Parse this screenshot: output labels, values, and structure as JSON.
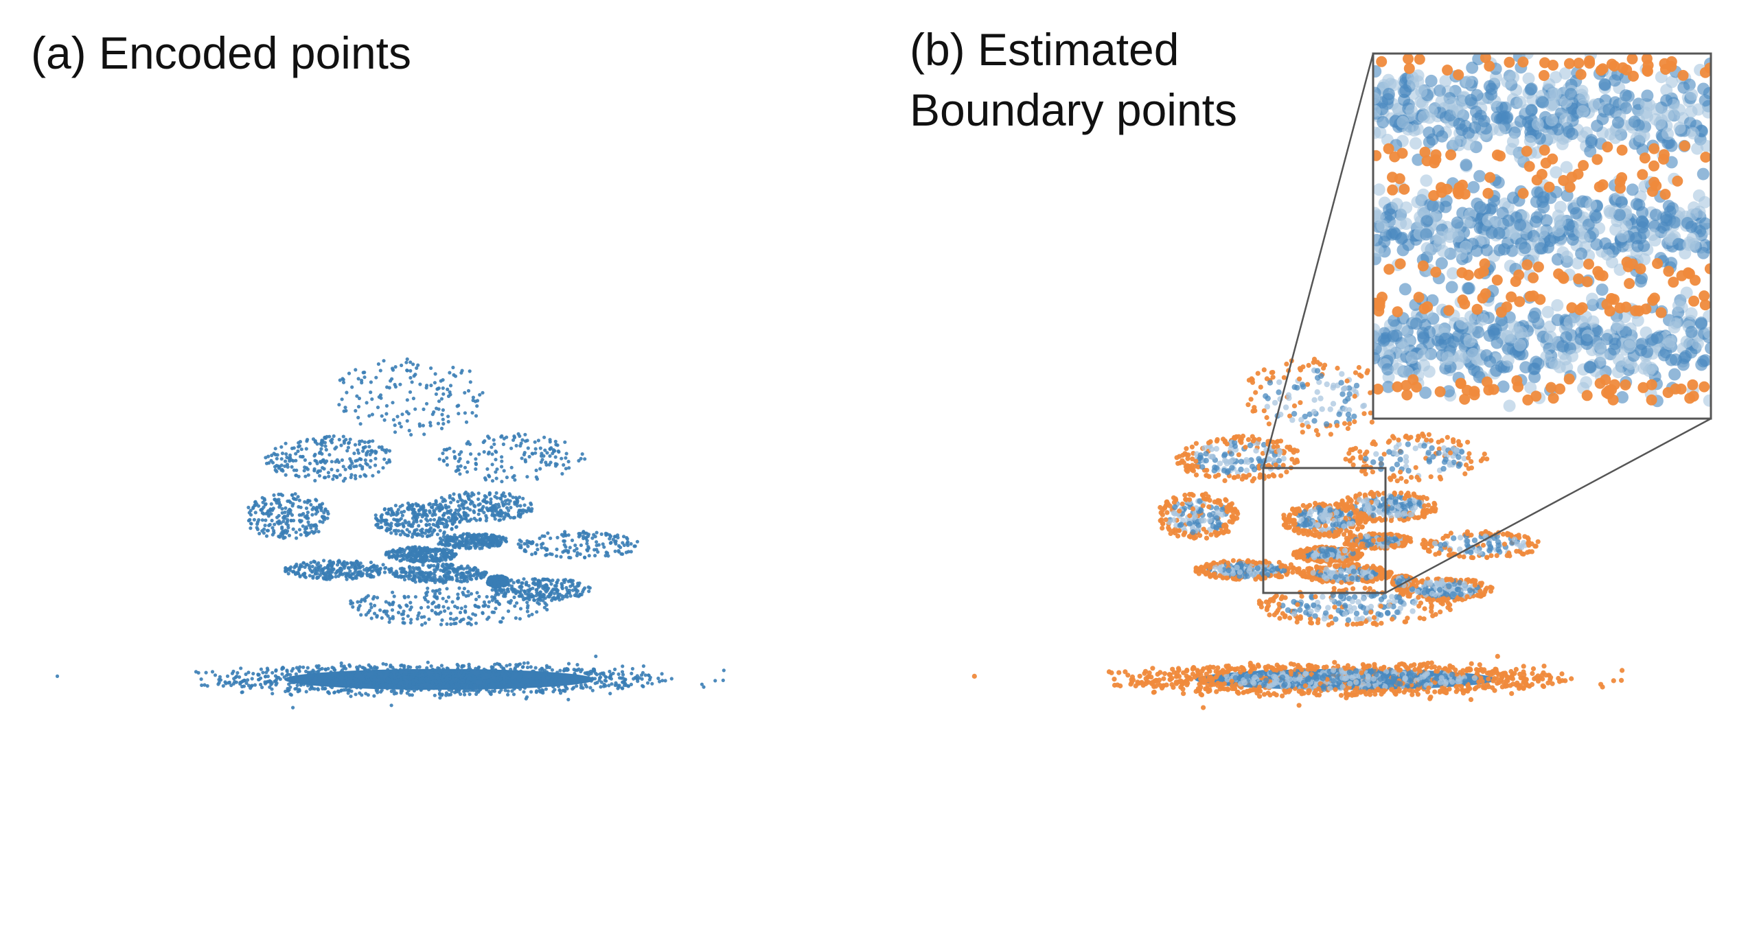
{
  "figure": {
    "panel_a_label": "(a) Encoded points",
    "panel_b_label_line1": "(b) Estimated",
    "panel_b_label_line2": "Boundary points"
  },
  "colors": {
    "encoded": "#3a7db5",
    "interior": "#4a89bf",
    "interior_light": "#a9c6df",
    "boundary": "#ef8a3c",
    "inset_frame": "#555555"
  },
  "chart_data": [
    {
      "type": "scatter",
      "title": "(a) Encoded points",
      "xlabel": "",
      "ylabel": "",
      "axes": "none",
      "grid": false,
      "legend": "none",
      "series": [
        {
          "color": "#3a7db5",
          "clusters": [
            {
              "shape": "ellipse",
              "cx": 0,
              "cy": -0.75,
              "rx": 0.52,
              "ry": 0.07,
              "density": "very high",
              "filled": true
            },
            {
              "shape": "ellipse",
              "cx": -0.08,
              "cy": 0.72,
              "rx": 0.22,
              "ry": 0.2,
              "density": "sparse"
            },
            {
              "shape": "ellipse",
              "cx": -0.3,
              "cy": 0.4,
              "rx": 0.18,
              "ry": 0.12,
              "density": "medium"
            },
            {
              "shape": "ellipse",
              "cx": 0.2,
              "cy": 0.4,
              "rx": 0.2,
              "ry": 0.13,
              "density": "sparse"
            },
            {
              "shape": "ellipse",
              "cx": -0.42,
              "cy": 0.1,
              "rx": 0.12,
              "ry": 0.12,
              "density": "medium"
            },
            {
              "shape": "ellipse",
              "cx": 0.12,
              "cy": 0.15,
              "rx": 0.14,
              "ry": 0.08,
              "density": "medium"
            },
            {
              "shape": "ellipse",
              "cx": -0.06,
              "cy": 0.08,
              "rx": 0.12,
              "ry": 0.09,
              "density": "high"
            },
            {
              "shape": "ellipse",
              "cx": 0.09,
              "cy": -0.03,
              "rx": 0.1,
              "ry": 0.04,
              "density": "high"
            },
            {
              "shape": "ellipse",
              "cx": -0.05,
              "cy": -0.1,
              "rx": 0.1,
              "ry": 0.04,
              "density": "high"
            },
            {
              "shape": "ellipse",
              "cx": 0.0,
              "cy": -0.2,
              "rx": 0.13,
              "ry": 0.05,
              "density": "high"
            },
            {
              "shape": "ellipse",
              "cx": -0.28,
              "cy": -0.18,
              "rx": 0.15,
              "ry": 0.05,
              "density": "high"
            },
            {
              "shape": "ellipse",
              "cx": 0.38,
              "cy": -0.05,
              "rx": 0.18,
              "ry": 0.07,
              "density": "sparse"
            },
            {
              "shape": "ellipse",
              "cx": 0.02,
              "cy": -0.37,
              "rx": 0.28,
              "ry": 0.1,
              "density": "medium"
            },
            {
              "shape": "ellipse",
              "cx": 0.28,
              "cy": -0.28,
              "rx": 0.14,
              "ry": 0.06,
              "density": "medium"
            },
            {
              "shape": "ellipse",
              "cx": 0.16,
              "cy": -0.24,
              "rx": 0.03,
              "ry": 0.03,
              "density": "high"
            }
          ]
        }
      ]
    },
    {
      "type": "scatter",
      "title": "(b) Estimated Boundary points",
      "xlabel": "",
      "ylabel": "",
      "axes": "none",
      "grid": false,
      "legend": "none",
      "series": [
        {
          "color": "#4a89bf",
          "role": "interior"
        },
        {
          "color": "#ef8a3c",
          "role": "boundary"
        }
      ],
      "inset": {
        "zoom_of": "central cluster region",
        "placement": "top-right",
        "connector_lines": true
      }
    }
  ]
}
